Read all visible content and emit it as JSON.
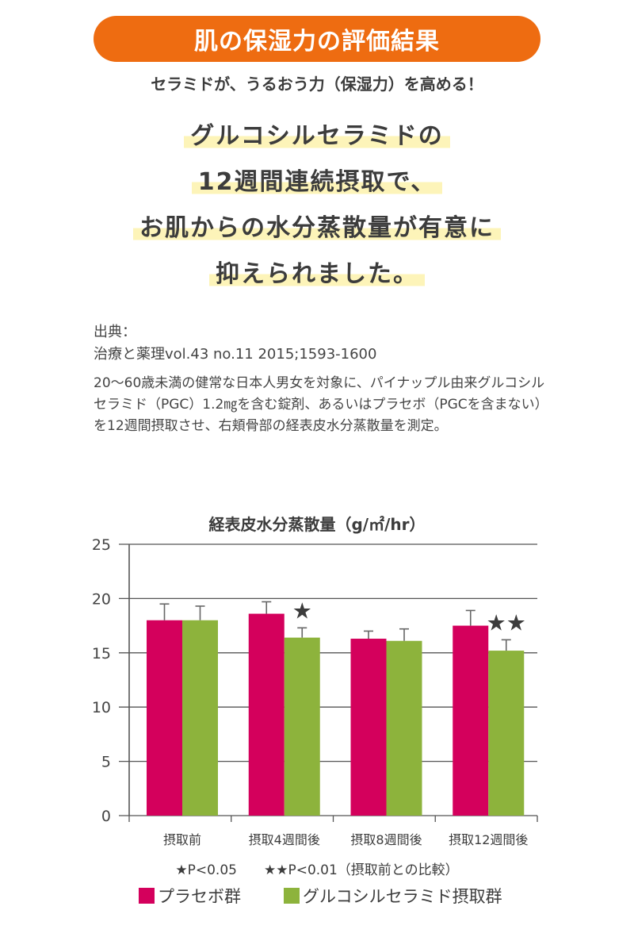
{
  "header": {
    "title": "肌の保湿力の評価結果",
    "subtitle": "セラミドが、うるおう力（保湿力）を高める！"
  },
  "headline": {
    "lines": [
      "グルコシルセラミドの",
      "12週間連続摂取で、",
      "お肌からの水分蒸散量が有意に",
      "抑えられました。"
    ]
  },
  "source": {
    "label": "出典：",
    "reference": "治療と薬理vol.43 no.11 2015;1593-1600",
    "description": "20〜60歳未満の健常な日本人男女を対象に、パイナップル由来グルコシルセラミド（PGC）1.2㎎を含む錠剤、あるいはプラセボ（PGCを含まない）を12週間摂取させ、右頬骨部の経表皮水分蒸散量を測定。"
  },
  "colors": {
    "accent": "#ee6c11",
    "placebo": "#d4005c",
    "glucosyl": "#8db33c"
  },
  "chart_data": {
    "type": "bar",
    "title": "経表皮水分蒸散量（g/㎡/hr）",
    "categories": [
      "摂取前",
      "摂取4週間後",
      "摂取8週間後",
      "摂取12週間後"
    ],
    "series": [
      {
        "name": "プラセボ群",
        "values": [
          18.0,
          18.6,
          16.3,
          17.5
        ],
        "errors": [
          1.5,
          1.1,
          0.7,
          1.4
        ]
      },
      {
        "name": "グルコシルセラミド摂取群",
        "values": [
          18.0,
          16.4,
          16.1,
          15.2
        ],
        "errors": [
          1.3,
          0.9,
          1.1,
          1.0
        ]
      }
    ],
    "significance": [
      "",
      "★",
      "",
      "★★"
    ],
    "ylim": [
      0,
      25
    ],
    "yticks": [
      0,
      5,
      10,
      15,
      20,
      25
    ],
    "grid": true,
    "legend_position": "bottom",
    "footnote": "★P<0.05　　★★P<0.01（摂取前との比較）"
  }
}
